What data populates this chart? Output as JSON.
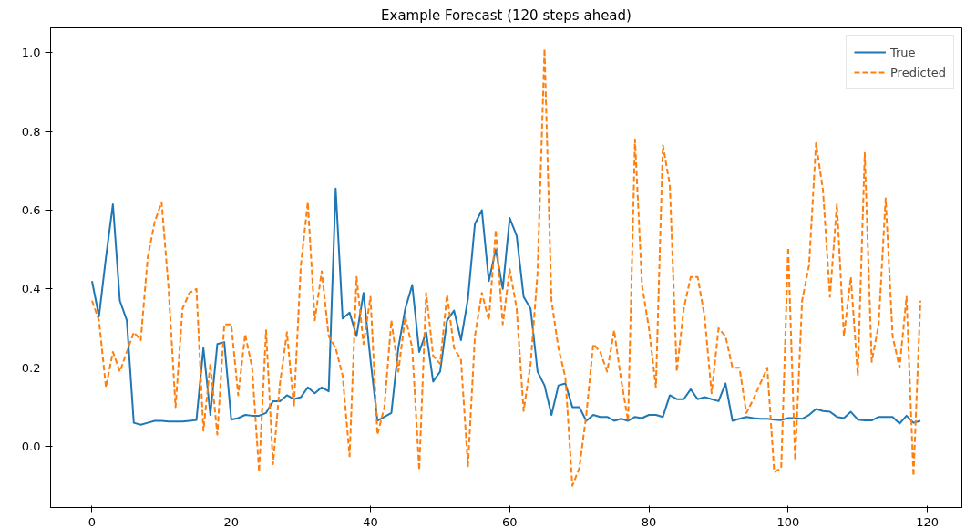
{
  "chart_data": {
    "type": "line",
    "title": "Example Forecast (120 steps ahead)",
    "x": [
      0,
      1,
      2,
      3,
      4,
      5,
      6,
      7,
      8,
      9,
      10,
      11,
      12,
      13,
      14,
      15,
      16,
      17,
      18,
      19,
      20,
      21,
      22,
      23,
      24,
      25,
      26,
      27,
      28,
      29,
      30,
      31,
      32,
      33,
      34,
      35,
      36,
      37,
      38,
      39,
      40,
      41,
      42,
      43,
      44,
      45,
      46,
      47,
      48,
      49,
      50,
      51,
      52,
      53,
      54,
      55,
      56,
      57,
      58,
      59,
      60,
      61,
      62,
      63,
      64,
      65,
      66,
      67,
      68,
      69,
      70,
      71,
      72,
      73,
      74,
      75,
      76,
      77,
      78,
      79,
      80,
      81,
      82,
      83,
      84,
      85,
      86,
      87,
      88,
      89,
      90,
      91,
      92,
      93,
      94,
      95,
      96,
      97,
      98,
      99,
      100,
      101,
      102,
      103,
      104,
      105,
      106,
      107,
      108,
      109,
      110,
      111,
      112,
      113,
      114,
      115,
      116,
      117,
      118,
      119
    ],
    "series": [
      {
        "name": "True",
        "color": "#1f77b4",
        "line_style": "solid",
        "values": [
          0.42,
          0.33,
          0.48,
          0.615,
          0.37,
          0.32,
          0.06,
          0.055,
          0.06,
          0.065,
          0.065,
          0.063,
          0.063,
          0.063,
          0.065,
          0.067,
          0.25,
          0.08,
          0.26,
          0.265,
          0.068,
          0.072,
          0.08,
          0.078,
          0.078,
          0.085,
          0.115,
          0.115,
          0.13,
          0.12,
          0.125,
          0.15,
          0.135,
          0.15,
          0.14,
          0.655,
          0.325,
          0.34,
          0.28,
          0.39,
          0.22,
          0.065,
          0.075,
          0.085,
          0.25,
          0.35,
          0.41,
          0.24,
          0.29,
          0.165,
          0.19,
          0.32,
          0.345,
          0.27,
          0.375,
          0.565,
          0.6,
          0.42,
          0.5,
          0.4,
          0.58,
          0.535,
          0.38,
          0.35,
          0.19,
          0.155,
          0.08,
          0.155,
          0.16,
          0.1,
          0.1,
          0.065,
          0.08,
          0.075,
          0.075,
          0.065,
          0.07,
          0.065,
          0.075,
          0.072,
          0.08,
          0.08,
          0.075,
          0.13,
          0.12,
          0.12,
          0.145,
          0.12,
          0.125,
          0.12,
          0.115,
          0.16,
          0.065,
          0.07,
          0.075,
          0.072,
          0.07,
          0.07,
          0.068,
          0.067,
          0.072,
          0.072,
          0.07,
          0.08,
          0.095,
          0.09,
          0.088,
          0.075,
          0.072,
          0.088,
          0.068,
          0.066,
          0.066,
          0.075,
          0.075,
          0.075,
          0.058,
          0.078,
          0.06,
          0.065
        ]
      },
      {
        "name": "Predicted",
        "color": "#ff7f0e",
        "line_style": "dashed",
        "values": [
          0.37,
          0.32,
          0.15,
          0.24,
          0.19,
          0.24,
          0.29,
          0.27,
          0.48,
          0.57,
          0.62,
          0.4,
          0.1,
          0.35,
          0.39,
          0.4,
          0.04,
          0.21,
          0.03,
          0.31,
          0.31,
          0.13,
          0.285,
          0.2,
          -0.065,
          0.295,
          -0.045,
          0.16,
          0.29,
          0.1,
          0.46,
          0.62,
          0.32,
          0.445,
          0.28,
          0.25,
          0.18,
          -0.025,
          0.43,
          0.26,
          0.38,
          0.03,
          0.1,
          0.32,
          0.19,
          0.33,
          0.25,
          -0.06,
          0.39,
          0.23,
          0.21,
          0.385,
          0.25,
          0.22,
          -0.05,
          0.28,
          0.39,
          0.32,
          0.55,
          0.31,
          0.45,
          0.35,
          0.09,
          0.21,
          0.44,
          1.01,
          0.37,
          0.25,
          0.175,
          -0.1,
          -0.055,
          0.08,
          0.26,
          0.24,
          0.19,
          0.295,
          0.17,
          0.065,
          0.78,
          0.41,
          0.3,
          0.15,
          0.765,
          0.665,
          0.19,
          0.35,
          0.43,
          0.43,
          0.33,
          0.135,
          0.3,
          0.28,
          0.2,
          0.2,
          0.085,
          0.12,
          0.16,
          0.2,
          -0.065,
          -0.055,
          0.505,
          -0.035,
          0.37,
          0.46,
          0.77,
          0.65,
          0.38,
          0.615,
          0.28,
          0.43,
          0.18,
          0.745,
          0.215,
          0.31,
          0.63,
          0.28,
          0.2,
          0.38,
          -0.075,
          0.37
        ]
      }
    ],
    "xlim": [
      -5.95,
      124.95
    ],
    "ylim": [
      -0.155,
      1.063
    ],
    "xticks": [
      0,
      20,
      40,
      60,
      80,
      100,
      120
    ],
    "yticks": [
      {
        "value": 0,
        "label": "0.0"
      },
      {
        "value": 0.2,
        "label": "0.2"
      },
      {
        "value": 0.4,
        "label": "0.4"
      },
      {
        "value": 0.6,
        "label": "0.6"
      },
      {
        "value": 0.8,
        "label": "0.8"
      },
      {
        "value": 1.0,
        "label": "1.0"
      }
    ],
    "legend": "top right",
    "grid": false
  }
}
